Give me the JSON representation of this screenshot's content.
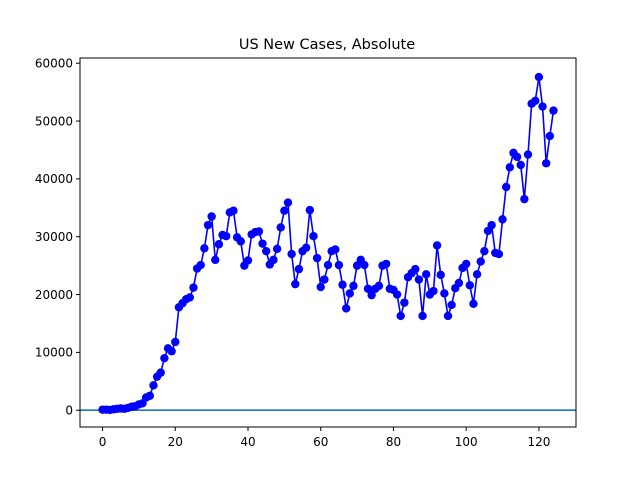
{
  "chart_data": {
    "type": "line",
    "title": "US New Cases, Absolute",
    "xlabel": "",
    "ylabel": "",
    "xlim": [
      -6.2,
      130.2
    ],
    "ylim": [
      -2900,
      60900
    ],
    "x_ticks": [
      0,
      20,
      40,
      60,
      80,
      100,
      120
    ],
    "y_ticks": [
      0,
      10000,
      20000,
      30000,
      40000,
      50000,
      60000
    ],
    "grid": false,
    "legend": "none",
    "colors": {
      "series": "#0000ff",
      "baseline": "#1f77b4"
    },
    "baseline_y": 0,
    "series": [
      {
        "x": [
          0,
          1,
          2,
          3,
          4,
          5,
          6,
          7,
          8,
          9,
          10,
          11,
          12,
          13,
          14,
          15,
          16,
          17,
          18,
          19,
          20,
          21,
          22,
          23,
          24,
          25,
          26,
          27,
          28,
          29,
          30,
          31,
          32,
          33,
          34,
          35,
          36,
          37,
          38,
          39,
          40,
          41,
          42,
          43,
          44,
          45,
          46,
          47,
          48,
          49,
          50,
          51,
          52,
          53,
          54,
          55,
          56,
          57,
          58,
          59,
          60,
          61,
          62,
          63,
          64,
          65,
          66,
          67,
          68,
          69,
          70,
          71,
          72,
          73,
          74,
          75,
          76,
          77,
          78,
          79,
          80,
          81,
          82,
          83,
          84,
          85,
          86,
          87,
          88,
          89,
          90,
          91,
          92,
          93,
          94,
          95,
          96,
          97,
          98,
          99,
          100,
          101,
          102,
          103,
          104,
          105,
          106,
          107,
          108,
          109,
          110,
          111,
          112,
          113,
          114,
          115,
          116,
          117,
          118,
          119,
          120,
          121,
          122,
          123,
          124
        ],
        "values": [
          100,
          100,
          50,
          150,
          250,
          300,
          250,
          400,
          600,
          700,
          1000,
          1200,
          2200,
          2500,
          4300,
          5800,
          6500,
          9000,
          10700,
          10200,
          11800,
          17800,
          18500,
          19200,
          19500,
          21200,
          24500,
          25100,
          28000,
          32000,
          33500,
          26000,
          28700,
          30300,
          30100,
          34200,
          34500,
          29900,
          29200,
          25000,
          25900,
          30400,
          30800,
          30900,
          28800,
          27500,
          25200,
          26000,
          27900,
          31600,
          34500,
          35900,
          27000,
          21800,
          24400,
          27500,
          28100,
          34600,
          30100,
          26300,
          21300,
          22600,
          25100,
          27500,
          27800,
          25100,
          21700,
          17600,
          20200,
          21500,
          25000,
          26000,
          25100,
          21000,
          19900,
          21000,
          21500,
          25000,
          25300,
          21000,
          20800,
          20000,
          16300,
          18600,
          23000,
          23700,
          24400,
          22600,
          16300,
          23500,
          20000,
          20600,
          28500,
          23400,
          20200,
          16300,
          18200,
          21100,
          22000,
          24600,
          25300,
          21600,
          18400,
          23500,
          25700,
          27500,
          31000,
          32000,
          27200,
          27000,
          33000,
          38600,
          42000,
          44500,
          43800,
          42400,
          36500,
          44200,
          53000,
          53500,
          57600,
          52500,
          42700,
          47400,
          51800
        ]
      }
    ]
  }
}
